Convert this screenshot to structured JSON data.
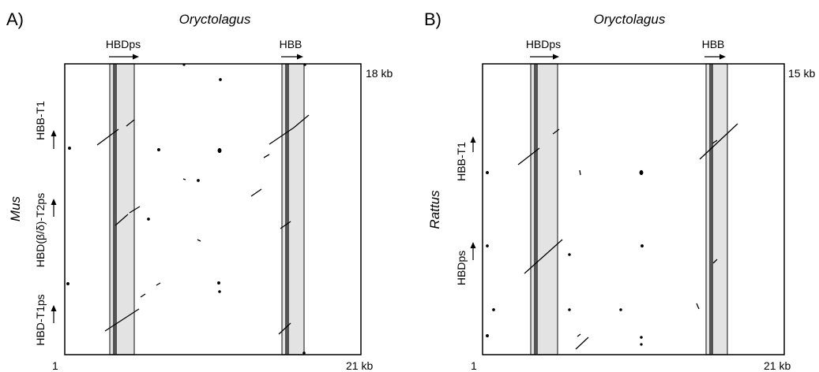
{
  "panels": [
    {
      "id": "A",
      "panel_label": "A)",
      "x_species": "Oryctolagus",
      "y_species": "Mus",
      "x_start": "1",
      "x_end": "21 kb",
      "y_end": "18 kb",
      "x_genes": [
        "HBDps",
        "HBB"
      ],
      "y_genes": [
        "HBB-T1",
        "HBD(β/δ)-T2ps",
        "HBD-T1ps"
      ]
    },
    {
      "id": "B",
      "panel_label": "B)",
      "x_species": "Oryctolagus",
      "y_species": "Rattus",
      "x_start": "1",
      "x_end": "21 kb",
      "y_end": "15 kb",
      "x_genes": [
        "HBDps",
        "HBB"
      ],
      "y_genes": [
        "HBB-T1",
        "HBDps"
      ]
    }
  ],
  "colors": {
    "frame": "#000000",
    "gene_band_fill": "#e3e3e3",
    "gene_band_core": "#555555",
    "dots": "#000000"
  }
}
